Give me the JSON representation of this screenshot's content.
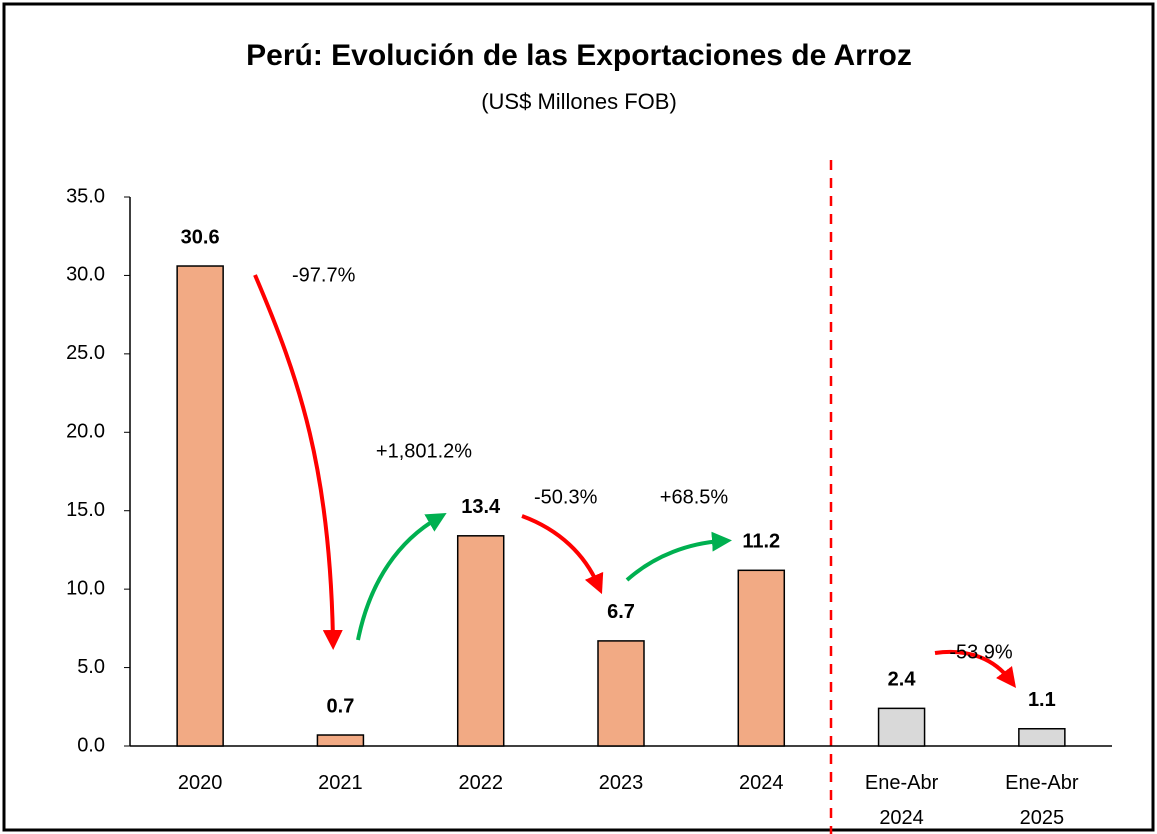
{
  "chart_data": {
    "type": "bar",
    "title": "Perú: Evolución de las Exportaciones de Arroz",
    "subtitle": "(US$ Millones FOB)",
    "categories": [
      "2020",
      "2021",
      "2022",
      "2023",
      "2024",
      "Ene-Abr 2024",
      "Ene-Abr 2025"
    ],
    "values": [
      30.6,
      0.7,
      13.4,
      6.7,
      11.2,
      2.4,
      1.1
    ],
    "colors": [
      "#f2aa84",
      "#f2aa84",
      "#f2aa84",
      "#f2aa84",
      "#f2aa84",
      "#d9d9d9",
      "#d9d9d9"
    ],
    "ylim": [
      0,
      35
    ],
    "yticks": [
      {
        "value": 0,
        "label": "0.0"
      },
      {
        "value": 5,
        "label": "5.0"
      },
      {
        "value": 10,
        "label": "10.0"
      },
      {
        "value": 15,
        "label": "15.0"
      },
      {
        "value": 20,
        "label": "20.0"
      },
      {
        "value": 25,
        "label": "25.0"
      },
      {
        "value": 30,
        "label": "30.0"
      },
      {
        "value": 35,
        "label": "35.0"
      }
    ],
    "grid": false,
    "annotations": [
      "-97.7%",
      "+1,801.2%",
      "-50.3%",
      "+68.5%",
      "-53.9%"
    ]
  }
}
